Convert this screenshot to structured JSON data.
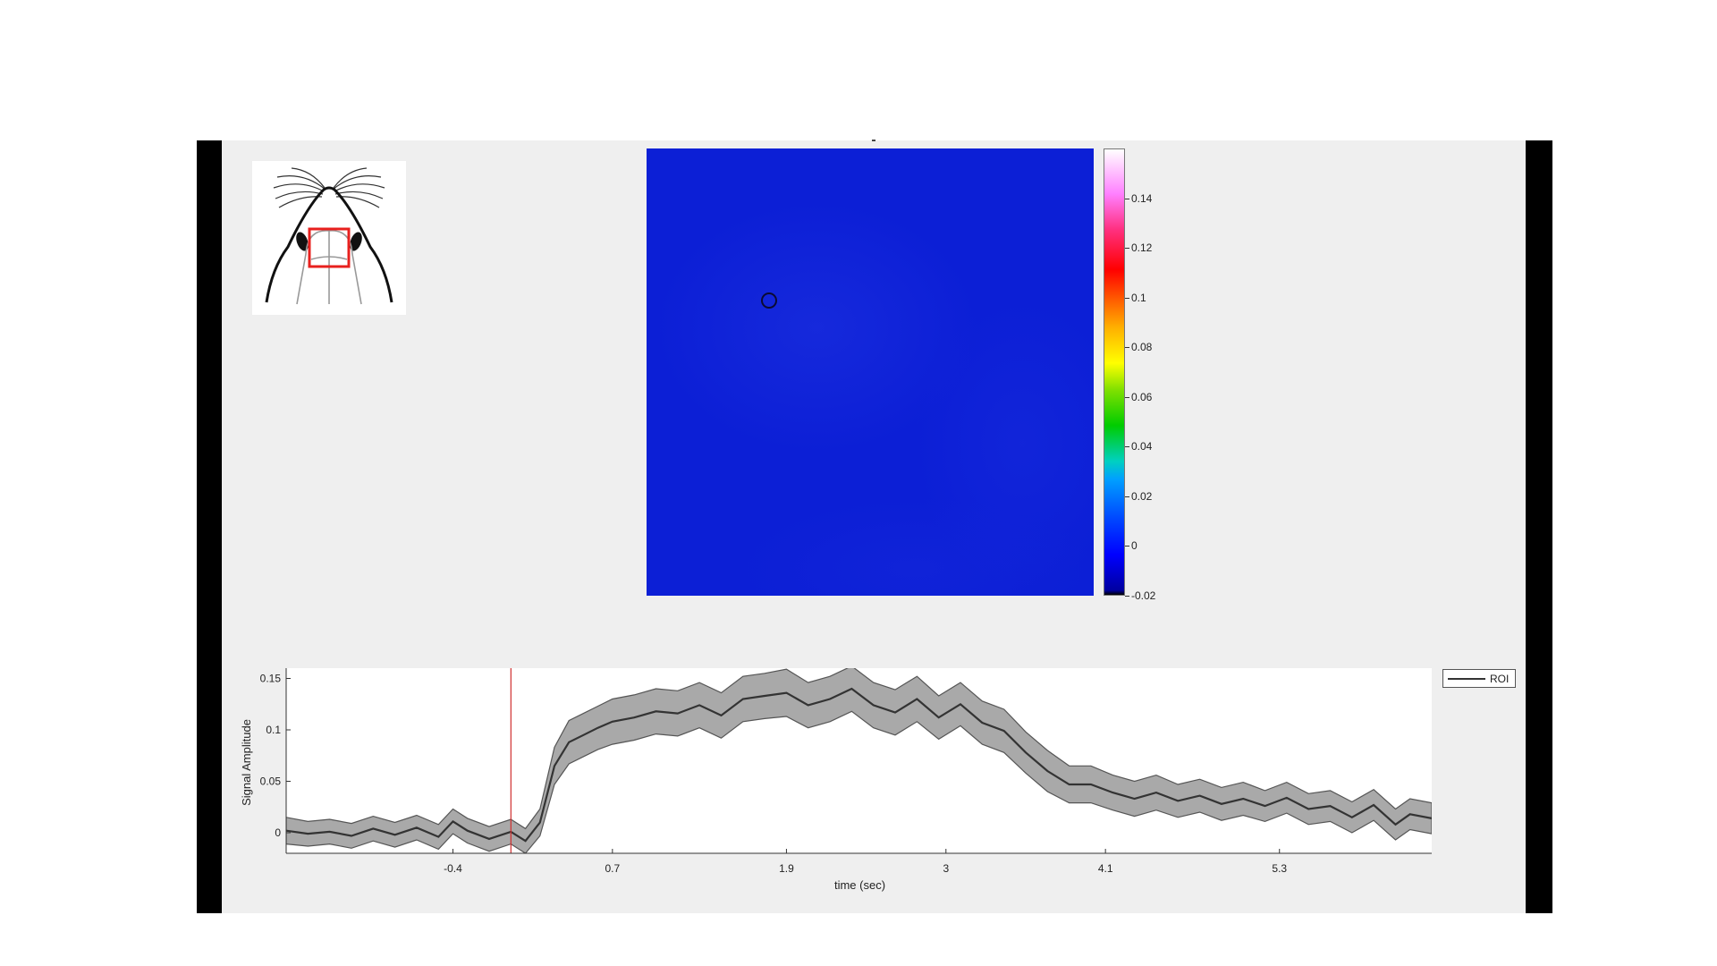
{
  "colorbar": {
    "ticks": [
      0.14,
      0.12,
      0.1,
      0.08,
      0.06,
      0.04,
      0.02,
      0,
      -0.02
    ],
    "labels": [
      "0.14",
      "0.12",
      "0.1",
      "0.08",
      "0.06",
      "0.04",
      "0.02",
      "0",
      "-0.02"
    ],
    "range": [
      -0.02,
      0.16
    ]
  },
  "legend": {
    "label": "ROI"
  },
  "chart_data": {
    "type": "line",
    "xlabel": "time (sec)",
    "ylabel": "Signal Amplitude",
    "xlim": [
      -1.55,
      6.35
    ],
    "ylim": [
      -0.02,
      0.16
    ],
    "xticks": [
      -0.4,
      0.7,
      1.9,
      3,
      4.1,
      5.3
    ],
    "xtick_labels": [
      "-0.4",
      "0.7",
      "1.9",
      "3",
      "4.1",
      "5.3"
    ],
    "yticks": [
      0,
      0.05,
      0.1,
      0.15
    ],
    "ytick_labels": [
      "0",
      "0.05",
      "0.1",
      "0.15"
    ],
    "stimulus_marker_x": 0,
    "series": [
      {
        "name": "ROI",
        "x": [
          -1.55,
          -1.4,
          -1.25,
          -1.1,
          -0.95,
          -0.8,
          -0.65,
          -0.5,
          -0.4,
          -0.3,
          -0.15,
          0,
          0.1,
          0.2,
          0.3,
          0.4,
          0.5,
          0.6,
          0.7,
          0.85,
          1.0,
          1.15,
          1.3,
          1.45,
          1.6,
          1.75,
          1.9,
          2.05,
          2.2,
          2.35,
          2.5,
          2.65,
          2.8,
          2.95,
          3.1,
          3.25,
          3.4,
          3.55,
          3.7,
          3.85,
          4.0,
          4.15,
          4.3,
          4.45,
          4.6,
          4.75,
          4.9,
          5.05,
          5.2,
          5.35,
          5.5,
          5.65,
          5.8,
          5.95,
          6.1,
          6.2,
          6.35
        ],
        "y": [
          0.002,
          -0.001,
          0.001,
          -0.003,
          0.004,
          -0.002,
          0.005,
          -0.004,
          0.011,
          0.002,
          -0.006,
          0.001,
          -0.008,
          0.01,
          0.065,
          0.088,
          0.095,
          0.102,
          0.108,
          0.112,
          0.118,
          0.116,
          0.124,
          0.114,
          0.13,
          0.133,
          0.136,
          0.124,
          0.13,
          0.14,
          0.124,
          0.117,
          0.13,
          0.112,
          0.125,
          0.107,
          0.099,
          0.078,
          0.06,
          0.047,
          0.047,
          0.039,
          0.033,
          0.039,
          0.031,
          0.036,
          0.028,
          0.033,
          0.026,
          0.034,
          0.023,
          0.026,
          0.015,
          0.027,
          0.008,
          0.018,
          0.014
        ],
        "sem": [
          0.013,
          0.012,
          0.012,
          0.012,
          0.012,
          0.012,
          0.012,
          0.012,
          0.012,
          0.012,
          0.012,
          0.012,
          0.012,
          0.013,
          0.018,
          0.021,
          0.021,
          0.021,
          0.022,
          0.022,
          0.022,
          0.022,
          0.022,
          0.022,
          0.022,
          0.022,
          0.023,
          0.022,
          0.022,
          0.022,
          0.022,
          0.022,
          0.022,
          0.021,
          0.021,
          0.021,
          0.021,
          0.02,
          0.02,
          0.018,
          0.018,
          0.017,
          0.017,
          0.017,
          0.016,
          0.016,
          0.016,
          0.016,
          0.015,
          0.015,
          0.015,
          0.015,
          0.015,
          0.015,
          0.015,
          0.015,
          0.015
        ]
      }
    ]
  }
}
